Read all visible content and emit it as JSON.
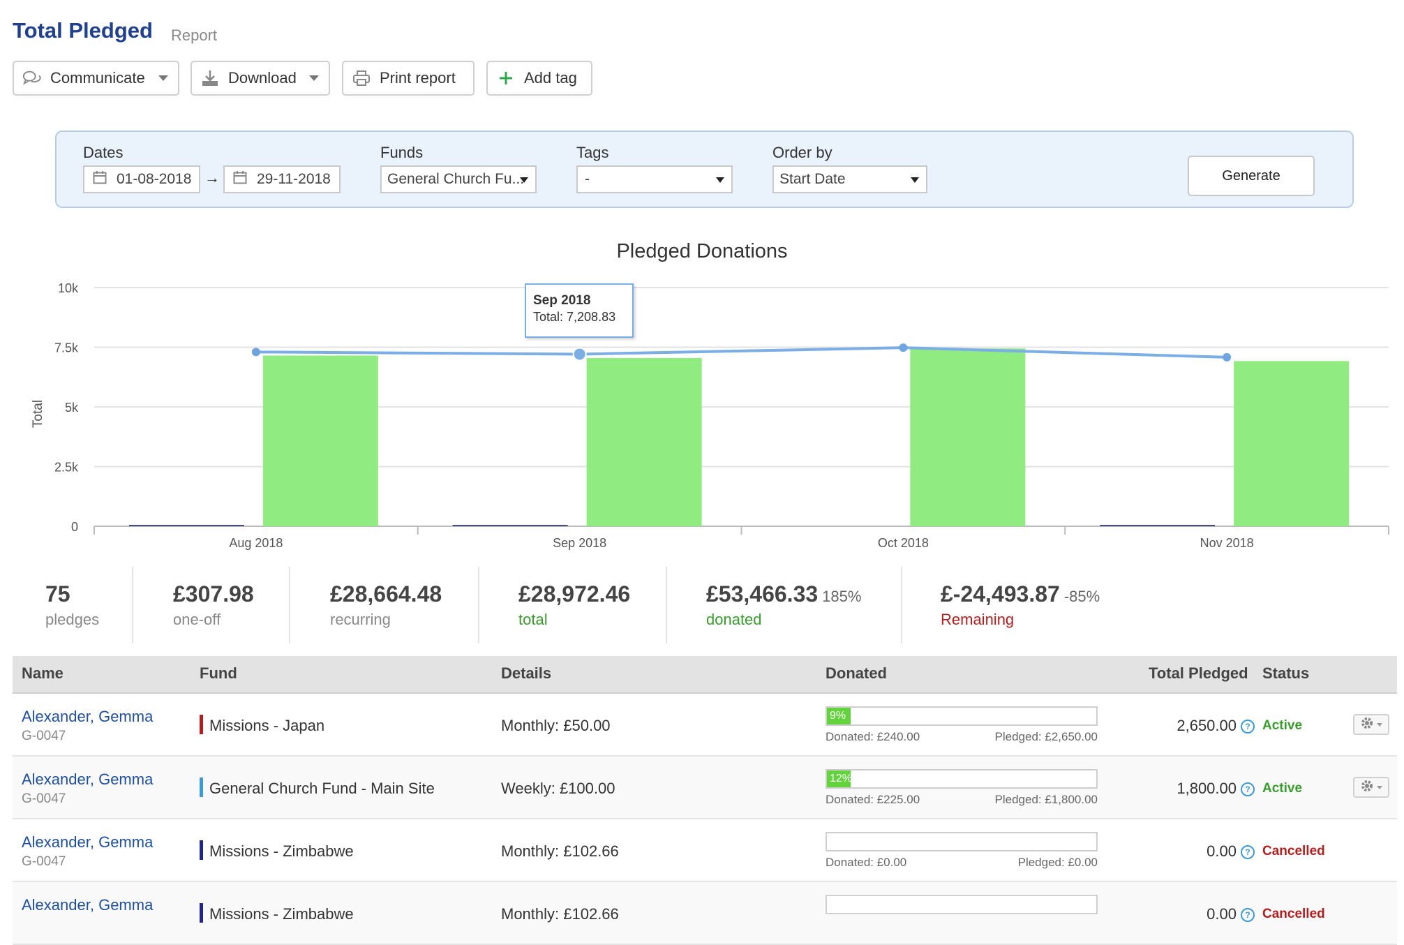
{
  "header": {
    "title": "Total Pledged",
    "subtitle": "Report"
  },
  "toolbar": {
    "communicate": "Communicate",
    "download": "Download",
    "print": "Print report",
    "add_tag": "Add tag"
  },
  "filters": {
    "dates_label": "Dates",
    "date_from": "01-08-2018",
    "date_arrow": "→",
    "date_to": "29-11-2018",
    "funds_label": "Funds",
    "funds_value": "General Church Fu...",
    "tags_label": "Tags",
    "tags_value": "-",
    "order_label": "Order by",
    "order_value": "Start Date",
    "generate": "Generate"
  },
  "chart_data": {
    "type": "bar",
    "title": "Pledged Donations",
    "ylabel": "Total",
    "xlabel": "",
    "ylim": [
      0,
      10000
    ],
    "yticks": [
      0,
      2500,
      5000,
      7500,
      10000
    ],
    "ytick_labels": [
      "0",
      "2.5k",
      "5k",
      "7.5k",
      "10k"
    ],
    "categories": [
      "Aug 2018",
      "Sep 2018",
      "Oct 2018",
      "Nov 2018"
    ],
    "series": [
      {
        "type": "bar",
        "color": "#4a4f7a",
        "values": [
          60,
          60,
          0,
          60
        ]
      },
      {
        "type": "bar",
        "color": "#90eb80",
        "values": [
          7150,
          7050,
          7450,
          6920
        ]
      },
      {
        "type": "line",
        "color": "#7aaee4",
        "values": [
          7300,
          7208.83,
          7480,
          7080
        ]
      }
    ],
    "tooltip": {
      "title": "Sep 2018",
      "label": "Total: 7,208.83"
    }
  },
  "stats": {
    "pledges_value": "75",
    "pledges_label": "pledges",
    "oneoff_value": "£307.98",
    "oneoff_label": "one-off",
    "recurring_value": "£28,664.48",
    "recurring_label": "recurring",
    "total_value": "£28,972.46",
    "total_label": "total",
    "donated_value": "£53,466.33",
    "donated_pct": "185%",
    "donated_label": "donated",
    "remaining_value": "£-24,493.87",
    "remaining_pct": "-85%",
    "remaining_label": "Remaining"
  },
  "colors": {
    "green": "#3a9b2e",
    "red": "#b21e1e",
    "link": "#1f4f9e"
  },
  "table": {
    "headers": {
      "name": "Name",
      "fund": "Fund",
      "details": "Details",
      "donated": "Donated",
      "total": "Total Pledged",
      "status": "Status"
    },
    "rows": [
      {
        "name": "Alexander, Gemma",
        "code": "G-0047",
        "fund": "Missions - Japan",
        "fund_color": "#b21e1e",
        "details": "Monthly: £50.00",
        "progress": 9,
        "progress_label": "9%",
        "donated": "Donated: £240.00",
        "pledged": "Pledged: £2,650.00",
        "total": "2,650.00",
        "status": "Active"
      },
      {
        "name": "Alexander, Gemma",
        "code": "G-0047",
        "fund": "General Church Fund - Main Site",
        "fund_color": "#3d9ad6",
        "details": "Weekly: £100.00",
        "progress": 12,
        "progress_label": "12%",
        "donated": "Donated: £225.00",
        "pledged": "Pledged: £1,800.00",
        "total": "1,800.00",
        "status": "Active"
      },
      {
        "name": "Alexander, Gemma",
        "code": "G-0047",
        "fund": "Missions - Zimbabwe",
        "fund_color": "#23238f",
        "details": "Monthly: £102.66",
        "progress": 0,
        "progress_label": "",
        "donated": "Donated: £0.00",
        "pledged": "Pledged: £0.00",
        "total": "0.00",
        "status": "Cancelled"
      },
      {
        "name": "Alexander, Gemma",
        "code": "",
        "fund": "Missions - Zimbabwe",
        "fund_color": "#23238f",
        "details": "Monthly: £102.66",
        "progress": 0,
        "progress_label": "",
        "donated": "",
        "pledged": "",
        "total": "0.00",
        "status": "Cancelled"
      }
    ]
  }
}
